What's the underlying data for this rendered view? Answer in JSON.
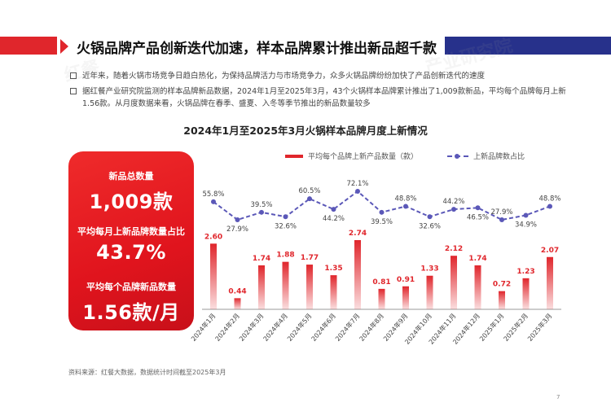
{
  "header": {
    "title": "火锅品牌产品创新迭代加速，样本品牌累计推出新品超千款"
  },
  "bullets": [
    "近年来，随着火锅市场竞争日趋白热化，为保持品牌活力与市场竞争力，众多火锅品牌纷纷加快了产品创新迭代的速度",
    "据红餐产业研究院监测的样本品牌新品数据，2024年1月至2025年3月，43个火锅样本品牌累计推出了1,009款新品，平均每个品牌每月上新1.56款。从月度数据来看，火锅品牌在春季、盛夏、入冬等季节推出的新品数量较多"
  ],
  "kpi": {
    "total_label": "新品总数量",
    "total_value": "1,009款",
    "share_label": "平均每月上新品牌数量占比",
    "share_value": "43.7%",
    "avg_label": "平均每个品牌新品数量",
    "avg_value": "1.56款/月"
  },
  "legend": {
    "bar": "平均每个品牌上新产品数量（款）",
    "line": "上新品牌数占比"
  },
  "colors": {
    "accent_red": "#e0262c",
    "navy": "#27318b",
    "line_purple": "#5b58b8"
  },
  "chart_data": {
    "type": "bar",
    "title": "2024年1月至2025年3月火锅样本品牌月度上新情况",
    "categories": [
      "2024年1月",
      "2024年2月",
      "2024年3月",
      "2024年4月",
      "2024年5月",
      "2024年6月",
      "2024年7月",
      "2024年8月",
      "2024年9月",
      "2024年10月",
      "2024年11月",
      "2024年12月",
      "2025年1月",
      "2025年2月",
      "2025年3月"
    ],
    "series": [
      {
        "name": "平均每个品牌上新产品数量（款）",
        "type": "bar",
        "values": [
          2.6,
          0.44,
          1.74,
          1.88,
          1.77,
          1.35,
          2.74,
          0.81,
          0.91,
          1.33,
          2.12,
          1.74,
          0.72,
          1.23,
          2.07
        ],
        "labels": [
          "2.60",
          "0.44",
          "1.74",
          "1.88",
          "1.77",
          "1.35",
          "2.74",
          "0.81",
          "0.91",
          "1.33",
          "2.12",
          "1.74",
          "0.72",
          "1.23",
          "2.07"
        ]
      },
      {
        "name": "上新品牌数占比",
        "type": "line",
        "values": [
          55.8,
          27.9,
          39.5,
          32.6,
          60.5,
          44.2,
          72.1,
          39.5,
          48.8,
          32.6,
          44.2,
          46.5,
          27.9,
          34.9,
          48.8
        ],
        "labels": [
          "55.8%",
          "27.9%",
          "39.5%",
          "32.6%",
          "60.5%",
          "44.2%",
          "72.1%",
          "39.5%",
          "48.8%",
          "32.6%",
          "44.2%",
          "46.5%",
          "27.9%",
          "34.9%",
          "48.8%"
        ]
      }
    ],
    "xlabel": "",
    "ylabel": "",
    "grid": false,
    "legend_position": "top"
  },
  "footer": {
    "source": "资料来源：红餐大数据，数据统计时间截至2025年3月",
    "page": "7"
  },
  "watermarks": [
    "红餐",
    "产业研究院"
  ]
}
